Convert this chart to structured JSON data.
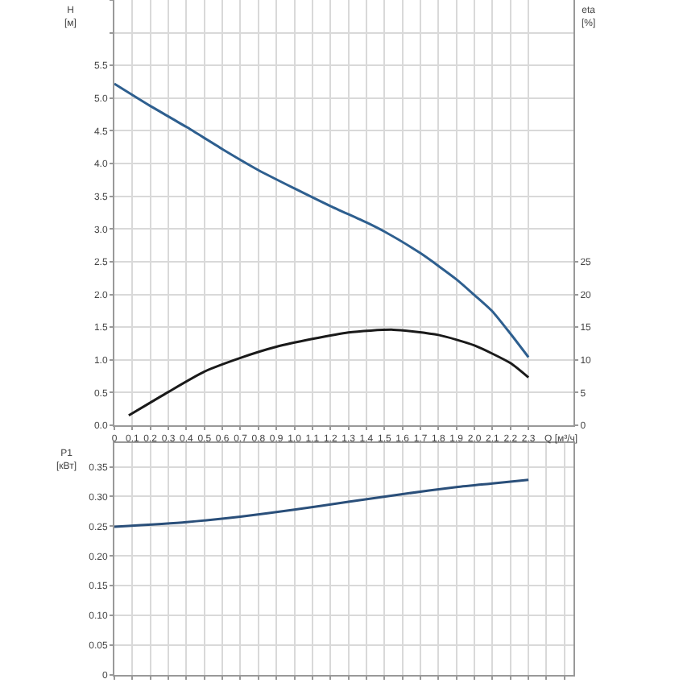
{
  "chart_data": [
    {
      "type": "line",
      "ylabel": "H\n[м]",
      "y2label": "eta\n[%]",
      "xlabel": "Q [м³/ч]",
      "grid": true,
      "marker": "none",
      "line_style": "solid",
      "xlim": [
        0,
        2.55
      ],
      "xticks": [
        0,
        0.1,
        0.2,
        0.3,
        0.4,
        0.5,
        0.6,
        0.7,
        0.8,
        0.9,
        {
          "value": 1,
          "label": "1.0"
        },
        1.1,
        1.2,
        1.3,
        1.4,
        1.5,
        1.6,
        1.7,
        1.8,
        1.9,
        {
          "value": 2,
          "label": "2.0"
        },
        2.1,
        2.2,
        2.3
      ],
      "ylim": [
        0,
        6.5
      ],
      "yticks": [
        {
          "value": 0,
          "label": "0.0"
        },
        0.5,
        {
          "value": 1,
          "label": "1.0"
        },
        1.5,
        {
          "value": 2,
          "label": "2.0"
        },
        2.5,
        {
          "value": 3,
          "label": "3.0"
        },
        3.5,
        {
          "value": 4,
          "label": "4.0"
        },
        4.5,
        {
          "value": 5,
          "label": "5.0"
        },
        5.5
      ],
      "y2lim": [
        0,
        65
      ],
      "y2ticks": [
        0,
        5,
        10,
        15,
        20,
        25
      ],
      "series": [
        {
          "color": "#2e5f8f",
          "x": [
            0,
            0.2,
            0.4,
            0.6,
            0.8,
            1.0,
            1.2,
            1.4,
            1.5,
            1.7,
            1.9,
            2.0,
            2.1,
            2.2,
            2.3
          ],
          "values": [
            5.22,
            4.88,
            4.56,
            4.22,
            3.9,
            3.62,
            3.35,
            3.1,
            2.96,
            2.63,
            2.23,
            1.99,
            1.74,
            1.4,
            1.04
          ]
        },
        {
          "color": "#1a1a1a",
          "axis": "y2",
          "x": [
            0.08,
            0.3,
            0.5,
            0.7,
            0.9,
            1.1,
            1.3,
            1.55,
            1.8,
            2.0,
            2.2,
            2.3
          ],
          "values": [
            1.5,
            5.1,
            8.2,
            10.3,
            12,
            13.2,
            14.2,
            14.6,
            13.8,
            12.2,
            9.5,
            7.3
          ]
        }
      ]
    },
    {
      "type": "line",
      "ylabel": "P1\n[кВт]",
      "grid": true,
      "marker": "none",
      "line_style": "solid",
      "tick_labels": "y",
      "xlim": [
        0,
        2.55
      ],
      "ylim": [
        0,
        0.39
      ],
      "yticks": [
        0,
        0.05,
        {
          "value": 0.1,
          "label": "0.10"
        },
        0.15,
        {
          "value": 0.2,
          "label": "0.20"
        },
        0.25,
        {
          "value": 0.3,
          "label": "0.30"
        },
        0.35
      ],
      "series": [
        {
          "color": "#2a4f7a",
          "x": [
            0,
            0.4,
            0.7,
            1.0,
            1.3,
            1.6,
            1.9,
            2.1,
            2.3
          ],
          "values": [
            0.249,
            0.257,
            0.266,
            0.278,
            0.291,
            0.304,
            0.316,
            0.322,
            0.328
          ]
        }
      ]
    }
  ]
}
